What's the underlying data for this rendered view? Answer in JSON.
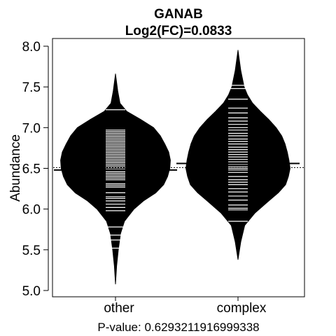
{
  "chart_data": {
    "type": "beanplot",
    "title": "GANAB",
    "subtitle": "Log2(FC)=0.0833",
    "xlabel": "",
    "ylabel": "Abundance",
    "footer": "P-value: 0.6293211916999338",
    "ylim": [
      5.0,
      8.0
    ],
    "yticks": [
      "5.0",
      "5.5",
      "6.0",
      "6.5",
      "7.0",
      "7.5",
      "8.0"
    ],
    "overall_mean": 6.51,
    "categories": [
      "other",
      "complex"
    ],
    "series": [
      {
        "category": "other",
        "mean": 6.48,
        "range": [
          5.08,
          7.66
        ],
        "density": [
          [
            5.08,
            0.0
          ],
          [
            5.3,
            0.02
          ],
          [
            5.5,
            0.05
          ],
          [
            5.7,
            0.09
          ],
          [
            5.85,
            0.16
          ],
          [
            6.0,
            0.33
          ],
          [
            6.1,
            0.5
          ],
          [
            6.2,
            0.72
          ],
          [
            6.3,
            0.86
          ],
          [
            6.4,
            0.93
          ],
          [
            6.5,
            0.97
          ],
          [
            6.6,
            0.98
          ],
          [
            6.7,
            0.95
          ],
          [
            6.8,
            0.88
          ],
          [
            6.9,
            0.8
          ],
          [
            7.0,
            0.68
          ],
          [
            7.1,
            0.45
          ],
          [
            7.2,
            0.2
          ],
          [
            7.3,
            0.08
          ],
          [
            7.45,
            0.04
          ],
          [
            7.66,
            0.0
          ]
        ],
        "points": [
          5.52,
          5.62,
          5.68,
          5.78,
          5.98,
          6.02,
          6.06,
          6.1,
          6.13,
          6.15,
          6.2,
          6.27,
          6.29,
          6.31,
          6.36,
          6.38,
          6.4,
          6.42,
          6.44,
          6.46,
          6.49,
          6.51,
          6.53,
          6.55,
          6.57,
          6.59,
          6.61,
          6.63,
          6.65,
          6.67,
          6.69,
          6.71,
          6.73,
          6.75,
          6.77,
          6.79,
          6.81,
          6.83,
          6.85,
          6.87,
          6.89,
          6.91,
          6.93,
          6.95,
          6.97,
          7.22
        ]
      },
      {
        "category": "complex",
        "mean": 6.56,
        "range": [
          5.38,
          7.95
        ],
        "density": [
          [
            5.38,
            0.0
          ],
          [
            5.6,
            0.05
          ],
          [
            5.8,
            0.12
          ],
          [
            5.95,
            0.3
          ],
          [
            6.1,
            0.55
          ],
          [
            6.2,
            0.72
          ],
          [
            6.3,
            0.85
          ],
          [
            6.4,
            0.9
          ],
          [
            6.5,
            0.93
          ],
          [
            6.6,
            0.91
          ],
          [
            6.7,
            0.88
          ],
          [
            6.8,
            0.84
          ],
          [
            6.9,
            0.78
          ],
          [
            7.0,
            0.68
          ],
          [
            7.1,
            0.55
          ],
          [
            7.2,
            0.4
          ],
          [
            7.3,
            0.26
          ],
          [
            7.4,
            0.17
          ],
          [
            7.5,
            0.11
          ],
          [
            7.7,
            0.05
          ],
          [
            7.95,
            0.0
          ]
        ],
        "points": [
          5.85,
          5.99,
          6.01,
          6.05,
          6.11,
          6.16,
          6.21,
          6.25,
          6.3,
          6.33,
          6.36,
          6.4,
          6.45,
          6.48,
          6.5,
          6.52,
          6.55,
          6.58,
          6.61,
          6.64,
          6.67,
          6.7,
          6.73,
          6.76,
          6.8,
          6.83,
          6.86,
          6.9,
          6.93,
          6.97,
          7.0,
          7.04,
          7.08,
          7.12,
          7.18,
          7.24,
          7.35,
          7.48,
          7.52
        ]
      }
    ]
  }
}
